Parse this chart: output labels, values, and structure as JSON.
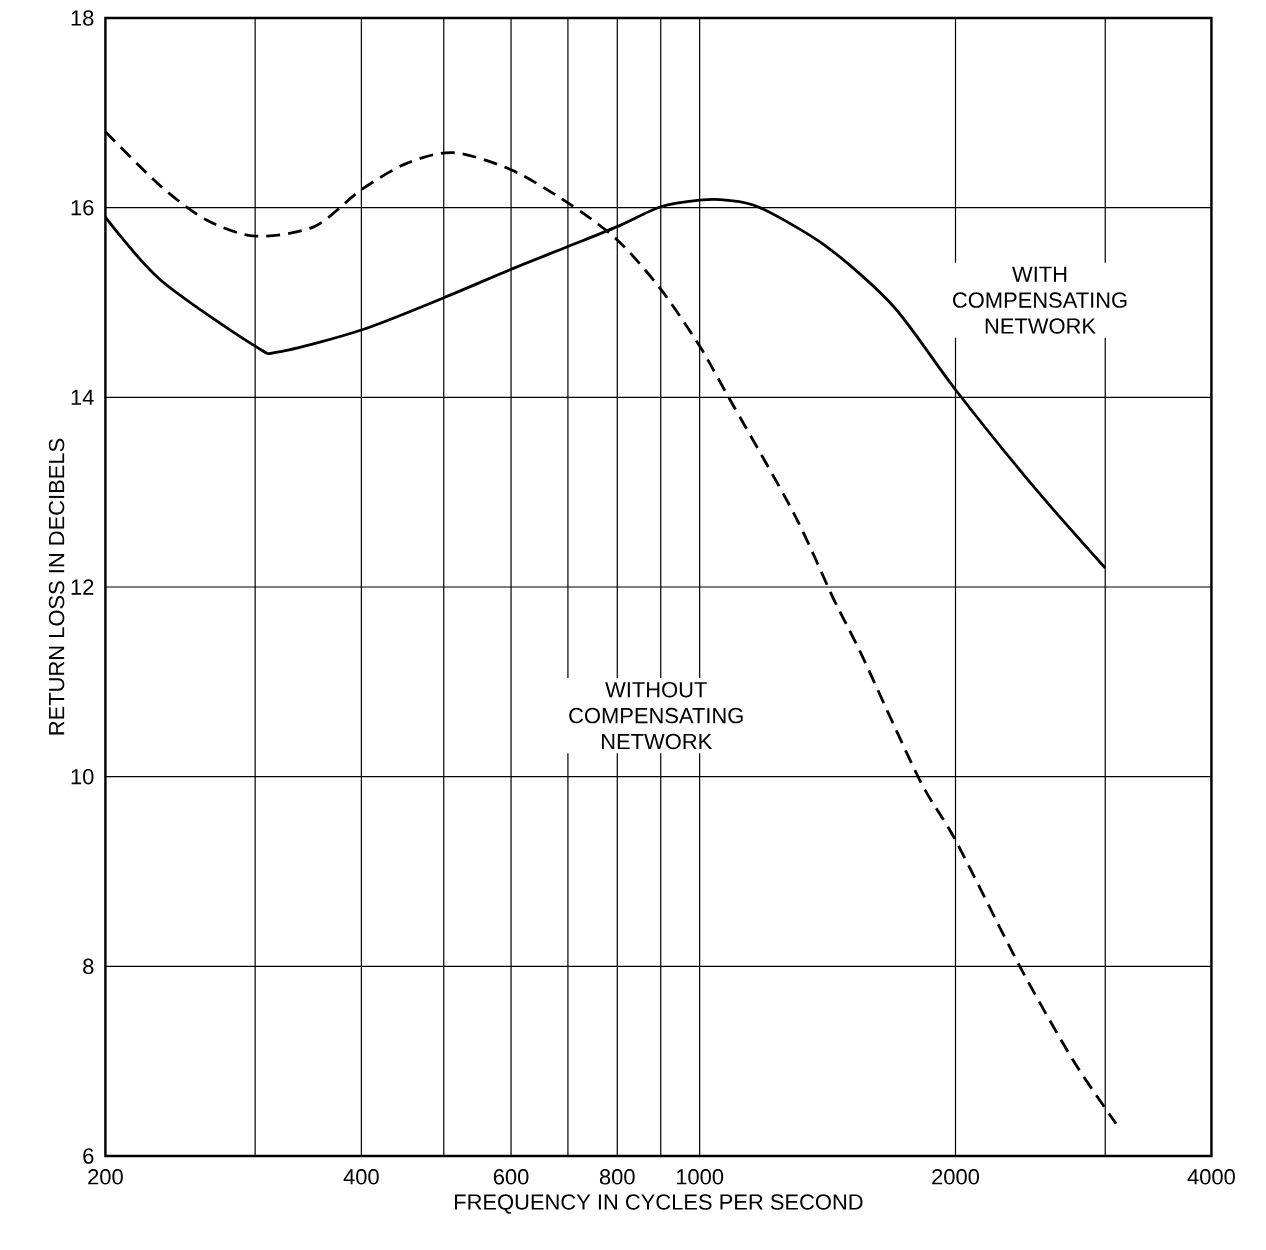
{
  "chart_data": {
    "type": "line",
    "xlabel": "FREQUENCY IN CYCLES PER SECOND",
    "ylabel": "RETURN LOSS IN DECIBELS",
    "log": "x",
    "grid": true,
    "xlim": [
      200,
      4000
    ],
    "ylim": [
      6,
      18
    ],
    "xticks": [
      200,
      {
        "value": 300,
        "label": null
      },
      400,
      {
        "value": 500,
        "label": null
      },
      600,
      {
        "value": 700,
        "label": null
      },
      800,
      {
        "value": 900,
        "label": null
      },
      1000,
      2000,
      {
        "value": 3000,
        "label": null
      },
      4000
    ],
    "yticks": [
      6,
      8,
      10,
      12,
      14,
      16,
      18
    ],
    "series": [
      {
        "color": "#000000",
        "line_style": "solid",
        "x": [
          200,
          232,
          300,
          320,
          400,
          500,
          600,
          700,
          800,
          900,
          1000,
          1074,
          1178,
          1410,
          1690,
          2000,
          2470,
          3000
        ],
        "values": [
          15.9,
          15.24,
          14.54,
          14.48,
          14.71,
          15.05,
          15.35,
          15.59,
          15.8,
          16.01,
          16.08,
          16.08,
          16.0,
          15.59,
          14.96,
          14.08,
          13.06,
          12.2
        ]
      },
      {
        "color": "#000000",
        "line_style": "dashed",
        "x": [
          200,
          232,
          263,
          300,
          352,
          400,
          453,
          513,
          600,
          700,
          800,
          900,
          1000,
          1074,
          1290,
          1438,
          1548,
          1814,
          2000,
          2380,
          2750,
          3090
        ],
        "values": [
          16.8,
          16.23,
          15.87,
          15.7,
          15.8,
          16.19,
          16.47,
          16.58,
          16.4,
          16.05,
          15.66,
          15.14,
          14.54,
          14.05,
          12.78,
          11.87,
          11.3,
          9.97,
          9.33,
          8.0,
          7.01,
          6.34
        ]
      }
    ],
    "annotations": [
      "WITH COMPENSATING NETWORK",
      "WITHOUT COMPENSATING NETWORK"
    ]
  }
}
